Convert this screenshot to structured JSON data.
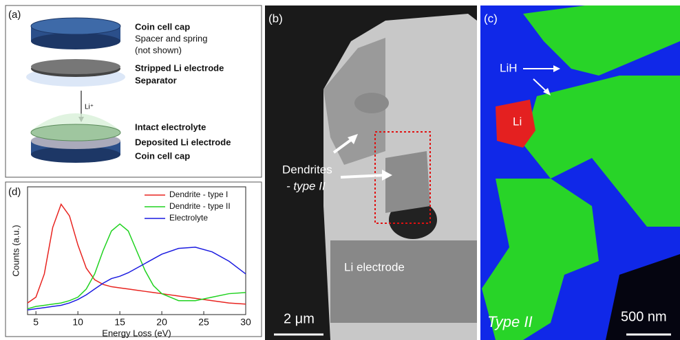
{
  "panels": {
    "a": {
      "label": "(a)",
      "texts": [
        "Coin cell cap",
        "Spacer and spring",
        "(not shown)",
        "Stripped Li electrode",
        "Separator",
        "Li⁺",
        "Intact electrolyte",
        "Deposited Li electrode",
        "Coin cell cap"
      ]
    },
    "b": {
      "label": "(b)",
      "dendrites": "Dendrites",
      "dendrite_type": "- type II",
      "electrode": "Li electrode",
      "scale": "2 μm"
    },
    "c": {
      "label": "(c)",
      "lih": "LiH",
      "li": "Li",
      "type": "Type II",
      "scale": "500 nm"
    }
  },
  "chart_data": {
    "type": "line",
    "label": "(d)",
    "xlabel": "Energy Loss (eV)",
    "ylabel": "Counts (a.u.)",
    "x": [
      4,
      5,
      6,
      7,
      8,
      9,
      10,
      11,
      12,
      13,
      14,
      15,
      16,
      17,
      18,
      19,
      20,
      22,
      24,
      26,
      28,
      30
    ],
    "series": [
      {
        "name": "Dendrite - type I",
        "color": "#e8231f",
        "values": [
          0.1,
          0.15,
          0.35,
          0.75,
          0.95,
          0.85,
          0.6,
          0.4,
          0.3,
          0.26,
          0.24,
          0.23,
          0.22,
          0.21,
          0.2,
          0.19,
          0.18,
          0.16,
          0.14,
          0.12,
          0.1,
          0.09
        ]
      },
      {
        "name": "Dendrite - type II",
        "color": "#1fd21f",
        "values": [
          0.05,
          0.07,
          0.08,
          0.09,
          0.1,
          0.12,
          0.15,
          0.22,
          0.35,
          0.55,
          0.72,
          0.78,
          0.72,
          0.55,
          0.38,
          0.25,
          0.18,
          0.12,
          0.12,
          0.15,
          0.18,
          0.19
        ]
      },
      {
        "name": "Electrolyte",
        "color": "#1a1ae0",
        "values": [
          0.04,
          0.05,
          0.06,
          0.07,
          0.08,
          0.1,
          0.13,
          0.17,
          0.22,
          0.27,
          0.31,
          0.33,
          0.36,
          0.4,
          0.44,
          0.48,
          0.52,
          0.57,
          0.58,
          0.54,
          0.46,
          0.35
        ]
      }
    ],
    "xlim": [
      4,
      30
    ],
    "xticks": [
      5,
      10,
      15,
      20,
      25,
      30
    ],
    "ylim": [
      0,
      1.1
    ],
    "legend": "upper right"
  }
}
